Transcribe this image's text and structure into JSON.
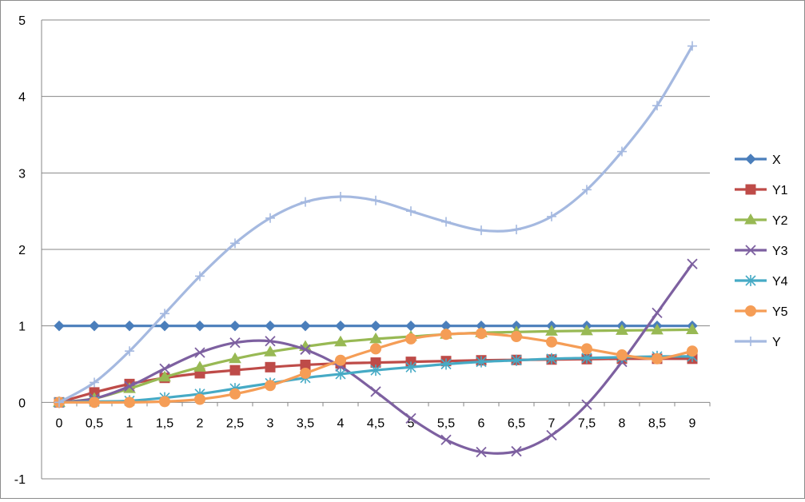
{
  "chart_data": {
    "type": "line",
    "title": "",
    "xlabel": "",
    "ylabel": "",
    "categories": [
      "0",
      "0,5",
      "1",
      "1,5",
      "2",
      "2,5",
      "3",
      "3,5",
      "4",
      "4,5",
      "5",
      "5,5",
      "6",
      "6,5",
      "7",
      "7,5",
      "8",
      "8,5",
      "9"
    ],
    "yticks": [
      "-1",
      "0",
      "1",
      "2",
      "3",
      "4",
      "5"
    ],
    "ylim": [
      -1,
      5
    ],
    "grid": true,
    "legend": "right",
    "series": [
      {
        "name": "X",
        "color": "#4a7ebb",
        "marker": "diamond",
        "values": [
          1,
          1,
          1,
          1,
          1,
          1,
          1,
          1,
          1,
          1,
          1,
          1,
          1,
          1,
          1,
          1,
          1,
          1,
          1
        ]
      },
      {
        "name": "Y1",
        "color": "#be4b48",
        "marker": "square",
        "values": [
          0,
          0.13,
          0.24,
          0.32,
          0.38,
          0.42,
          0.46,
          0.49,
          0.51,
          0.52,
          0.53,
          0.54,
          0.55,
          0.555,
          0.56,
          0.565,
          0.57,
          0.57,
          0.57
        ]
      },
      {
        "name": "Y2",
        "color": "#98b954",
        "marker": "triangle",
        "values": [
          0,
          0.05,
          0.18,
          0.33,
          0.46,
          0.57,
          0.66,
          0.73,
          0.79,
          0.83,
          0.86,
          0.89,
          0.91,
          0.92,
          0.93,
          0.935,
          0.94,
          0.945,
          0.95
        ]
      },
      {
        "name": "Y3",
        "color": "#7d60a0",
        "marker": "x",
        "values": [
          0,
          0.05,
          0.21,
          0.44,
          0.65,
          0.78,
          0.8,
          0.69,
          0.47,
          0.14,
          -0.21,
          -0.49,
          -0.65,
          -0.64,
          -0.43,
          -0.03,
          0.53,
          1.17,
          1.81
        ]
      },
      {
        "name": "Y4",
        "color": "#46aac5",
        "marker": "star",
        "values": [
          0,
          0.01,
          0.02,
          0.06,
          0.11,
          0.18,
          0.25,
          0.32,
          0.37,
          0.42,
          0.46,
          0.5,
          0.53,
          0.55,
          0.57,
          0.58,
          0.59,
          0.6,
          0.6
        ]
      },
      {
        "name": "Y5",
        "color": "#f59d56",
        "marker": "circle",
        "values": [
          0,
          0,
          0,
          0.01,
          0.04,
          0.11,
          0.22,
          0.38,
          0.55,
          0.7,
          0.83,
          0.89,
          0.9,
          0.86,
          0.79,
          0.7,
          0.62,
          0.57,
          0.67
        ]
      },
      {
        "name": "Y",
        "color": "#a5b9e0",
        "marker": "plus",
        "values": [
          0,
          0.26,
          0.67,
          1.16,
          1.65,
          2.08,
          2.41,
          2.62,
          2.69,
          2.64,
          2.5,
          2.36,
          2.25,
          2.26,
          2.43,
          2.78,
          3.28,
          3.88,
          4.66
        ]
      }
    ]
  }
}
